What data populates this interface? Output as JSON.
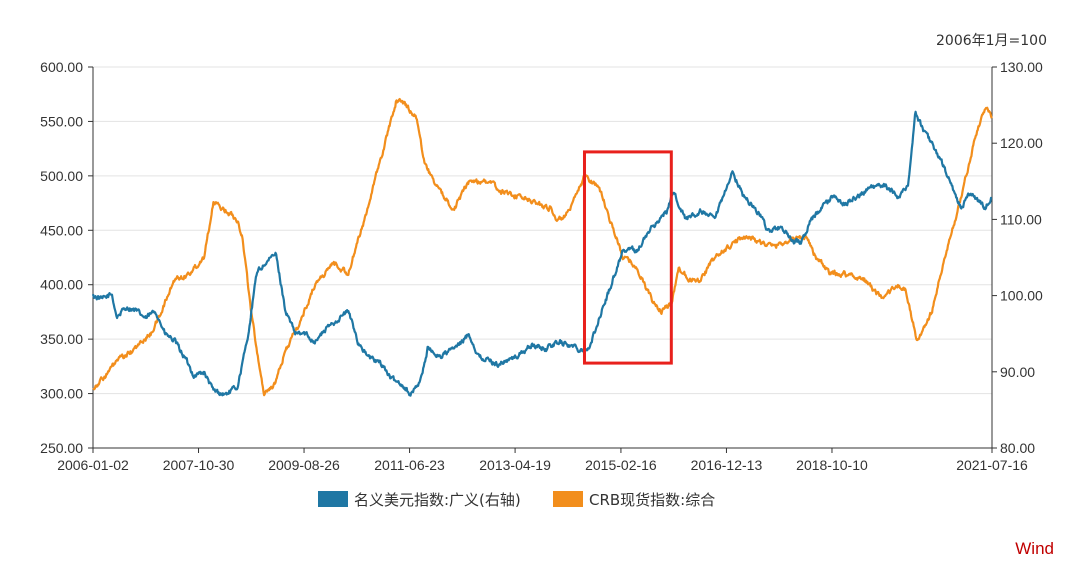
{
  "chart_data": {
    "type": "line",
    "unit_note": "2006年1月=100",
    "watermark": "Wind",
    "x_ticks": [
      "2006-01-02",
      "2007-10-30",
      "2009-08-26",
      "2011-06-23",
      "2013-04-19",
      "2015-02-16",
      "2016-12-13",
      "2018-10-10",
      "2021-07-16"
    ],
    "xlim": [
      "2006-01-02",
      "2021-07-16"
    ],
    "left_axis": {
      "ticks": [
        "600.00",
        "550.00",
        "500.00",
        "450.00",
        "400.00",
        "350.00",
        "300.00",
        "250.00"
      ],
      "ylim": [
        250,
        600
      ]
    },
    "right_axis": {
      "ticks": [
        "130.00",
        "120.00",
        "110.00",
        "100.00",
        "90.00",
        "80.00"
      ],
      "ylim": [
        80,
        130
      ]
    },
    "grid": "horizontal",
    "legend_position": "bottom-center",
    "highlight_box": {
      "x_range": [
        "2014-07-01",
        "2015-12-31"
      ],
      "y_range_left": [
        328,
        522
      ],
      "color": "#e8201c"
    },
    "series": [
      {
        "name": "名义美元指数:广义(右轴)",
        "axis": "right",
        "color": "#1f77a4",
        "points": [
          [
            "2006-01-02",
            100
          ],
          [
            "2006-03-01",
            99.5
          ],
          [
            "2006-05-01",
            100.2
          ],
          [
            "2006-06-01",
            97.2
          ],
          [
            "2006-08-01",
            98.5
          ],
          [
            "2006-10-01",
            98
          ],
          [
            "2006-12-01",
            97
          ],
          [
            "2007-02-01",
            98
          ],
          [
            "2007-04-01",
            95
          ],
          [
            "2007-06-01",
            94
          ],
          [
            "2007-08-01",
            92
          ],
          [
            "2007-10-01",
            89.5
          ],
          [
            "2007-12-01",
            90
          ],
          [
            "2008-02-01",
            87.5
          ],
          [
            "2008-04-15",
            87
          ],
          [
            "2008-07-01",
            88
          ],
          [
            "2008-09-01",
            94
          ],
          [
            "2008-11-01",
            103
          ],
          [
            "2008-12-15",
            104
          ],
          [
            "2009-03-01",
            105.5
          ],
          [
            "2009-05-01",
            98
          ],
          [
            "2009-07-01",
            95
          ],
          [
            "2009-09-01",
            95
          ],
          [
            "2009-11-01",
            94
          ],
          [
            "2010-02-01",
            96
          ],
          [
            "2010-06-01",
            98
          ],
          [
            "2010-08-01",
            94
          ],
          [
            "2010-10-01",
            92
          ],
          [
            "2011-01-01",
            91
          ],
          [
            "2011-03-01",
            89
          ],
          [
            "2011-05-01",
            88.5
          ],
          [
            "2011-07-01",
            87
          ],
          [
            "2011-09-01",
            89
          ],
          [
            "2011-10-15",
            93
          ],
          [
            "2012-01-01",
            92
          ],
          [
            "2012-05-01",
            93.5
          ],
          [
            "2012-07-01",
            95
          ],
          [
            "2012-09-01",
            92
          ],
          [
            "2013-01-01",
            91
          ],
          [
            "2013-05-01",
            92
          ],
          [
            "2013-08-01",
            93.5
          ],
          [
            "2013-11-01",
            93
          ],
          [
            "2014-01-15",
            94
          ],
          [
            "2014-04-01",
            93.5
          ],
          [
            "2014-06-01",
            93
          ],
          [
            "2014-08-01",
            93
          ],
          [
            "2014-10-01",
            97
          ],
          [
            "2014-12-01",
            100.5
          ],
          [
            "2015-03-01",
            106
          ],
          [
            "2015-06-01",
            106
          ],
          [
            "2015-09-01",
            109
          ],
          [
            "2015-12-01",
            111
          ],
          [
            "2016-01-15",
            113.5
          ],
          [
            "2016-04-01",
            110
          ],
          [
            "2016-07-01",
            111
          ],
          [
            "2016-10-01",
            110
          ],
          [
            "2016-12-31",
            115
          ],
          [
            "2017-01-15",
            116.5
          ],
          [
            "2017-04-01",
            113
          ],
          [
            "2017-07-01",
            111
          ],
          [
            "2017-09-01",
            108.5
          ],
          [
            "2017-12-01",
            109
          ],
          [
            "2018-02-01",
            107
          ],
          [
            "2018-04-01",
            107
          ],
          [
            "2018-06-01",
            110
          ],
          [
            "2018-10-15",
            113
          ],
          [
            "2019-01-01",
            112
          ],
          [
            "2019-06-01",
            114
          ],
          [
            "2019-09-01",
            114.5
          ],
          [
            "2019-12-01",
            113
          ],
          [
            "2020-02-01",
            114.5
          ],
          [
            "2020-03-20",
            124
          ],
          [
            "2020-05-01",
            122
          ],
          [
            "2020-07-01",
            120
          ],
          [
            "2020-09-01",
            117.5
          ],
          [
            "2020-12-01",
            113
          ],
          [
            "2021-01-01",
            111.5
          ],
          [
            "2021-03-01",
            113.5
          ],
          [
            "2021-06-01",
            111.5
          ],
          [
            "2021-07-16",
            113
          ]
        ]
      },
      {
        "name": "CRB现货指数:综合",
        "axis": "left",
        "color": "#f28e1c",
        "points": [
          [
            "2006-01-02",
            305
          ],
          [
            "2006-04-01",
            318
          ],
          [
            "2006-06-01",
            330
          ],
          [
            "2006-09-01",
            338
          ],
          [
            "2007-01-01",
            355
          ],
          [
            "2007-03-01",
            372
          ],
          [
            "2007-06-01",
            405
          ],
          [
            "2007-09-01",
            410
          ],
          [
            "2007-12-01",
            425
          ],
          [
            "2008-02-01",
            475
          ],
          [
            "2008-04-01",
            470
          ],
          [
            "2008-07-01",
            460
          ],
          [
            "2008-08-01",
            445
          ],
          [
            "2008-10-01",
            370
          ],
          [
            "2008-12-15",
            300
          ],
          [
            "2009-03-01",
            310
          ],
          [
            "2009-05-01",
            340
          ],
          [
            "2009-08-01",
            365
          ],
          [
            "2009-11-01",
            400
          ],
          [
            "2010-03-01",
            420
          ],
          [
            "2010-06-01",
            410
          ],
          [
            "2010-09-01",
            455
          ],
          [
            "2011-01-01",
            520
          ],
          [
            "2011-04-01",
            570
          ],
          [
            "2011-06-01",
            565
          ],
          [
            "2011-08-01",
            555
          ],
          [
            "2011-10-01",
            510
          ],
          [
            "2012-01-01",
            485
          ],
          [
            "2012-04-01",
            470
          ],
          [
            "2012-07-01",
            495
          ],
          [
            "2012-11-01",
            495
          ],
          [
            "2013-02-01",
            485
          ],
          [
            "2013-06-01",
            480
          ],
          [
            "2013-09-01",
            475
          ],
          [
            "2013-12-01",
            470
          ],
          [
            "2014-01-15",
            458
          ],
          [
            "2014-04-01",
            468
          ],
          [
            "2014-07-01",
            500
          ],
          [
            "2014-10-01",
            490
          ],
          [
            "2015-01-01",
            450
          ],
          [
            "2015-03-01",
            425
          ],
          [
            "2015-05-01",
            420
          ],
          [
            "2015-07-01",
            405
          ],
          [
            "2015-09-01",
            385
          ],
          [
            "2015-11-01",
            375
          ],
          [
            "2015-12-31",
            383
          ],
          [
            "2016-02-15",
            415
          ],
          [
            "2016-05-01",
            405
          ],
          [
            "2016-07-01",
            405
          ],
          [
            "2016-10-01",
            425
          ],
          [
            "2016-12-31",
            435
          ],
          [
            "2017-04-01",
            445
          ],
          [
            "2017-07-01",
            440
          ],
          [
            "2017-10-01",
            435
          ],
          [
            "2018-01-01",
            440
          ],
          [
            "2018-05-01",
            445
          ],
          [
            "2018-07-01",
            425
          ],
          [
            "2018-10-01",
            410
          ],
          [
            "2019-01-01",
            410
          ],
          [
            "2019-05-01",
            405
          ],
          [
            "2019-09-01",
            385
          ],
          [
            "2019-11-15",
            400
          ],
          [
            "2020-01-15",
            395
          ],
          [
            "2020-04-01",
            348
          ],
          [
            "2020-05-15",
            360
          ],
          [
            "2020-07-01",
            375
          ],
          [
            "2020-10-01",
            430
          ],
          [
            "2021-01-01",
            480
          ],
          [
            "2021-04-01",
            535
          ],
          [
            "2021-06-01",
            562
          ],
          [
            "2021-07-16",
            555
          ]
        ]
      }
    ]
  }
}
